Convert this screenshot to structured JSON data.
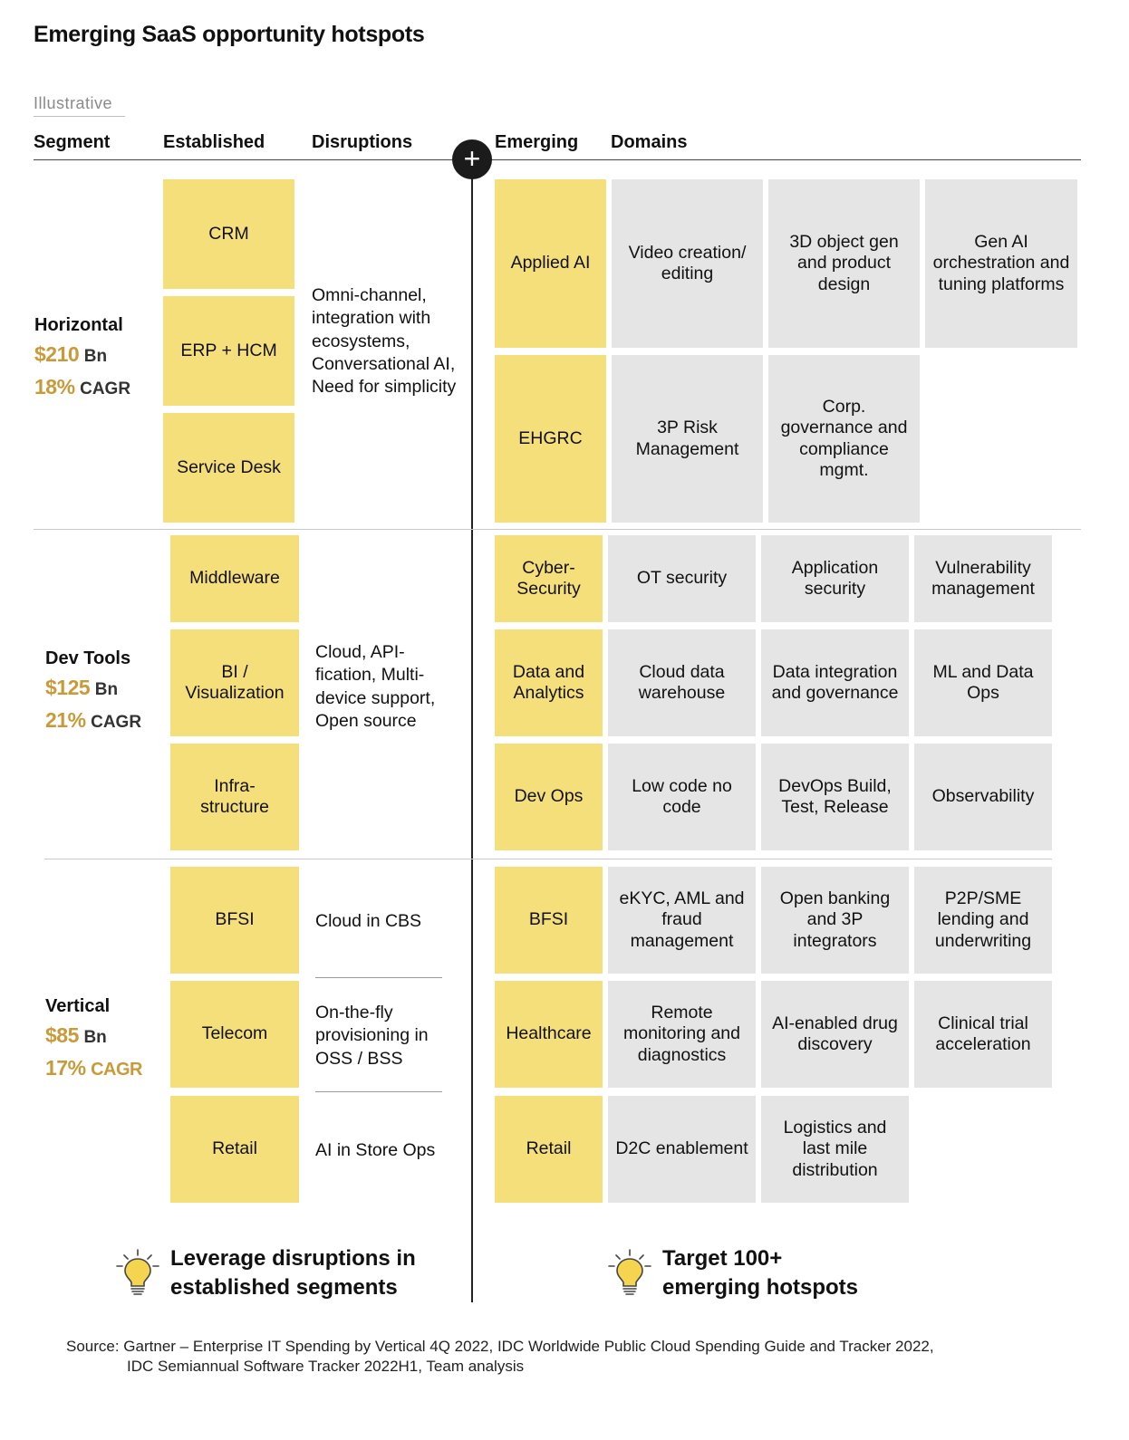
{
  "title": "Emerging SaaS opportunity hotspots",
  "illustrative": "Illustrative",
  "headers": {
    "segment": "Segment",
    "established": "Established",
    "disruptions": "Disruptions",
    "emerging": "Emerging",
    "domains": "Domains",
    "plus": "+"
  },
  "horizontal": {
    "name": "Horizontal",
    "value": "$210",
    "unit": "Bn",
    "cagr": "18%",
    "cagr_label": "CAGR",
    "established": [
      "CRM",
      "ERP + HCM",
      "Service Desk"
    ],
    "disruptions": "Omni-channel, integration with ecosystems, Conversational AI, Need for simplicity",
    "emerging": [
      {
        "name": "Applied AI",
        "domains": [
          "Video creation/ editing",
          "3D object gen and product design",
          "Gen AI orchestration and tuning platforms"
        ]
      },
      {
        "name": "EHGRC",
        "domains": [
          "3P Risk Management",
          "Corp. governance and compliance mgmt."
        ]
      }
    ]
  },
  "devtools": {
    "name": "Dev Tools",
    "value": "$125",
    "unit": "Bn",
    "cagr": "21%",
    "cagr_label": "CAGR",
    "established": [
      "Middleware",
      "BI / Visualization",
      "Infra-structure"
    ],
    "disruptions": "Cloud, API-fication, Multi-device support, Open source",
    "emerging": [
      {
        "name": "Cyber-Security",
        "domains": [
          "OT security",
          "Application security",
          "Vulnerability management"
        ]
      },
      {
        "name": "Data and Analytics",
        "domains": [
          "Cloud data warehouse",
          "Data integration and governance",
          "ML and Data Ops"
        ]
      },
      {
        "name": "Dev Ops",
        "domains": [
          "Low code no code",
          "DevOps Build, Test, Release",
          "Observability"
        ]
      }
    ]
  },
  "vertical": {
    "name": "Vertical",
    "value": "$85",
    "unit": "Bn",
    "cagr": "17%",
    "cagr_label": "CAGR",
    "established": [
      "BFSI",
      "Telecom",
      "Retail"
    ],
    "disruptions": [
      "Cloud in CBS",
      "On-the-fly provisioning in OSS / BSS",
      "AI in Store Ops"
    ],
    "emerging": [
      {
        "name": "BFSI",
        "domains": [
          "eKYC, AML and fraud management",
          "Open banking and 3P integrators",
          "P2P/SME lending and underwriting"
        ]
      },
      {
        "name": "Healthcare",
        "domains": [
          "Remote monitoring and diagnostics",
          "AI-enabled drug discovery",
          "Clinical trial acceleration"
        ]
      },
      {
        "name": "Retail",
        "domains": [
          "D2C enablement",
          "Logistics and last mile distribution"
        ]
      }
    ]
  },
  "takeaways": {
    "left": [
      "Leverage disruptions in",
      "established segments"
    ],
    "right": [
      "Target 100+",
      "emerging hotspots"
    ]
  },
  "icons": {
    "bulb": "lightbulb-icon",
    "plus": "plus-icon"
  },
  "colors": {
    "yellow": "#f5df7a",
    "gray": "#e5e5e5",
    "accent": "#c99a3a"
  },
  "source": [
    "Source: Gartner – Enterprise IT Spending by Vertical 4Q 2022, IDC Worldwide Public Cloud Spending Guide and Tracker 2022,",
    "IDC Semiannual Software Tracker 2022H1, Team analysis"
  ]
}
